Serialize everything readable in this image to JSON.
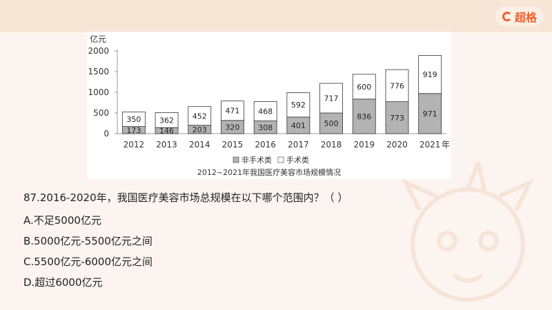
{
  "brand": {
    "name": "超格"
  },
  "chart_data": {
    "type": "bar",
    "stacked": true,
    "title": "2012~2021年我国医疗美容市场规模情况",
    "ylabel": "亿元",
    "xlabel": "年",
    "ylim": [
      0,
      2000
    ],
    "yticks": [
      "0",
      "500",
      "1000",
      "1500",
      "2000"
    ],
    "categories": [
      "2012",
      "2013",
      "2014",
      "2015",
      "2016",
      "2017",
      "2018",
      "2019",
      "2020",
      "2021"
    ],
    "series": [
      {
        "name": "非手术类",
        "values": [
          173,
          146,
          203,
          320,
          308,
          401,
          500,
          836,
          773,
          971
        ],
        "color": "#b3b3b3"
      },
      {
        "name": "手术类",
        "values": [
          350,
          362,
          452,
          471,
          468,
          592,
          717,
          600,
          776,
          919
        ],
        "color": "#ffffff"
      }
    ],
    "legend_position": "bottom",
    "grid": false
  },
  "question": {
    "text": "87.2016-2020年，我国医疗美容市场总规模在以下哪个范围内？（    ）",
    "options": [
      "A.不足5000亿元",
      "B.5000亿元-5500亿元之间",
      "C.5500亿元-6000亿元之间",
      "D.超过6000亿元"
    ]
  }
}
